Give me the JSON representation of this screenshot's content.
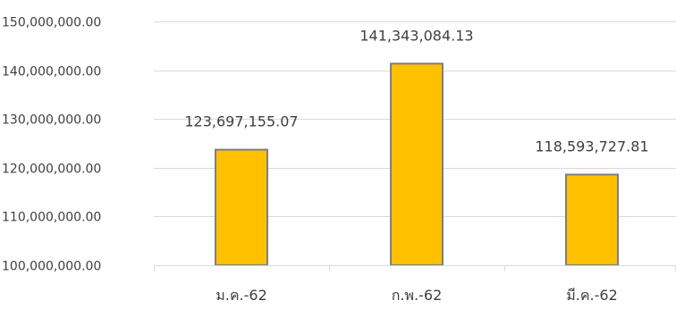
{
  "chart_data": {
    "type": "bar",
    "categories": [
      "ม.ค.-62",
      "ก.พ.-62",
      "มี.ค.-62"
    ],
    "values": [
      123697155.07,
      141343084.13,
      118593727.81
    ],
    "data_labels": [
      "123,697,155.07",
      "141,343,084.13",
      "118,593,727.81"
    ],
    "y_tick_labels": [
      "100,000,000.00",
      "110,000,000.00",
      "120,000,000.00",
      "130,000,000.00",
      "140,000,000.00",
      "150,000,000.00"
    ],
    "y_ticks": [
      100000000,
      110000000,
      120000000,
      130000000,
      140000000,
      150000000
    ],
    "ylim": [
      100000000,
      150000000
    ],
    "title": "",
    "xlabel": "",
    "ylabel": "",
    "grid": true,
    "legend": "none",
    "bar_color": "#FFC000",
    "bar_edge_color": "#7F7F7F",
    "grid_color": "#D9D9D9",
    "text_color": "#404040"
  }
}
